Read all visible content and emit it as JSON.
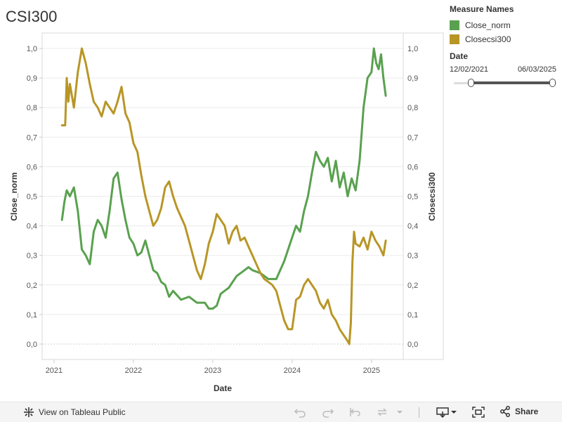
{
  "title": "CSI300",
  "legend": {
    "header": "Measure Names",
    "items": [
      {
        "label": "Close_norm",
        "color": "#59a14f"
      },
      {
        "label": "Closecsi300",
        "color": "#b89626"
      }
    ]
  },
  "filter": {
    "header": "Date",
    "start": "12/02/2021",
    "end": "06/03/2025"
  },
  "toolbar": {
    "view_label": "View on Tableau Public",
    "share_label": "Share"
  },
  "chart_data": {
    "type": "line",
    "xlabel": "Date",
    "ylabel_left": "Close_norm",
    "ylabel_right": "Closecsi300",
    "x_ticks": [
      "2021",
      "2022",
      "2023",
      "2024",
      "2025"
    ],
    "y_ticks": [
      "0,0",
      "0,1",
      "0,2",
      "0,3",
      "0,4",
      "0,5",
      "0,6",
      "0,7",
      "0,8",
      "0,9",
      "1,0"
    ],
    "xlim": [
      2020.85,
      2025.4
    ],
    "ylim": [
      0,
      1.05
    ],
    "grid": true,
    "series": [
      {
        "name": "Close_norm",
        "color": "#59a14f",
        "x": [
          2021.1,
          2021.13,
          2021.16,
          2021.2,
          2021.25,
          2021.3,
          2021.35,
          2021.4,
          2021.45,
          2021.5,
          2021.55,
          2021.6,
          2021.65,
          2021.7,
          2021.75,
          2021.8,
          2021.85,
          2021.9,
          2021.95,
          2022.0,
          2022.05,
          2022.1,
          2022.15,
          2022.2,
          2022.25,
          2022.3,
          2022.35,
          2022.4,
          2022.45,
          2022.5,
          2022.6,
          2022.7,
          2022.8,
          2022.9,
          2022.95,
          2023.0,
          2023.05,
          2023.1,
          2023.15,
          2023.2,
          2023.3,
          2023.4,
          2023.45,
          2023.5,
          2023.6,
          2023.7,
          2023.8,
          2023.9,
          2024.0,
          2024.05,
          2024.1,
          2024.15,
          2024.2,
          2024.25,
          2024.3,
          2024.35,
          2024.4,
          2024.45,
          2024.5,
          2024.55,
          2024.6,
          2024.65,
          2024.7,
          2024.75,
          2024.8,
          2024.85,
          2024.9,
          2024.95,
          2025.0,
          2025.03,
          2025.06,
          2025.09,
          2025.12,
          2025.15,
          2025.18
        ],
        "values": [
          0.42,
          0.48,
          0.52,
          0.5,
          0.53,
          0.45,
          0.32,
          0.3,
          0.27,
          0.38,
          0.42,
          0.4,
          0.36,
          0.45,
          0.56,
          0.58,
          0.49,
          0.42,
          0.36,
          0.34,
          0.3,
          0.31,
          0.35,
          0.3,
          0.25,
          0.24,
          0.21,
          0.2,
          0.16,
          0.18,
          0.15,
          0.16,
          0.14,
          0.14,
          0.12,
          0.12,
          0.13,
          0.17,
          0.18,
          0.19,
          0.23,
          0.25,
          0.26,
          0.25,
          0.24,
          0.22,
          0.22,
          0.28,
          0.36,
          0.4,
          0.38,
          0.45,
          0.5,
          0.58,
          0.65,
          0.62,
          0.6,
          0.63,
          0.55,
          0.62,
          0.53,
          0.58,
          0.5,
          0.56,
          0.52,
          0.62,
          0.8,
          0.9,
          0.92,
          1.0,
          0.95,
          0.93,
          0.98,
          0.9,
          0.84
        ]
      },
      {
        "name": "Closecsi300",
        "color": "#b89626",
        "x": [
          2021.1,
          2021.14,
          2021.16,
          2021.18,
          2021.2,
          2021.25,
          2021.3,
          2021.35,
          2021.4,
          2021.45,
          2021.5,
          2021.55,
          2021.6,
          2021.65,
          2021.7,
          2021.75,
          2021.8,
          2021.85,
          2021.9,
          2021.95,
          2022.0,
          2022.05,
          2022.1,
          2022.15,
          2022.2,
          2022.25,
          2022.3,
          2022.35,
          2022.4,
          2022.45,
          2022.5,
          2022.55,
          2022.6,
          2022.65,
          2022.7,
          2022.75,
          2022.8,
          2022.85,
          2022.9,
          2022.95,
          2023.0,
          2023.05,
          2023.1,
          2023.15,
          2023.2,
          2023.25,
          2023.3,
          2023.35,
          2023.4,
          2023.45,
          2023.5,
          2023.55,
          2023.6,
          2023.65,
          2023.7,
          2023.75,
          2023.8,
          2023.85,
          2023.9,
          2023.95,
          2024.0,
          2024.05,
          2024.1,
          2024.15,
          2024.2,
          2024.25,
          2024.3,
          2024.35,
          2024.4,
          2024.45,
          2024.5,
          2024.55,
          2024.6,
          2024.65,
          2024.7,
          2024.72,
          2024.74,
          2024.76,
          2024.78,
          2024.8,
          2024.85,
          2024.9,
          2024.95,
          2025.0,
          2025.05,
          2025.1,
          2025.15,
          2025.18
        ],
        "values": [
          0.74,
          0.74,
          0.9,
          0.82,
          0.88,
          0.8,
          0.92,
          1.0,
          0.95,
          0.88,
          0.82,
          0.8,
          0.77,
          0.82,
          0.8,
          0.78,
          0.82,
          0.87,
          0.78,
          0.75,
          0.68,
          0.65,
          0.57,
          0.5,
          0.45,
          0.4,
          0.42,
          0.46,
          0.53,
          0.55,
          0.5,
          0.46,
          0.43,
          0.4,
          0.35,
          0.3,
          0.25,
          0.22,
          0.27,
          0.34,
          0.38,
          0.44,
          0.42,
          0.4,
          0.34,
          0.38,
          0.4,
          0.35,
          0.36,
          0.33,
          0.3,
          0.27,
          0.24,
          0.22,
          0.21,
          0.2,
          0.18,
          0.13,
          0.08,
          0.05,
          0.05,
          0.15,
          0.16,
          0.2,
          0.22,
          0.2,
          0.18,
          0.14,
          0.12,
          0.15,
          0.1,
          0.08,
          0.05,
          0.03,
          0.01,
          0.0,
          0.07,
          0.28,
          0.38,
          0.34,
          0.33,
          0.36,
          0.32,
          0.38,
          0.35,
          0.33,
          0.3,
          0.35
        ]
      }
    ]
  }
}
